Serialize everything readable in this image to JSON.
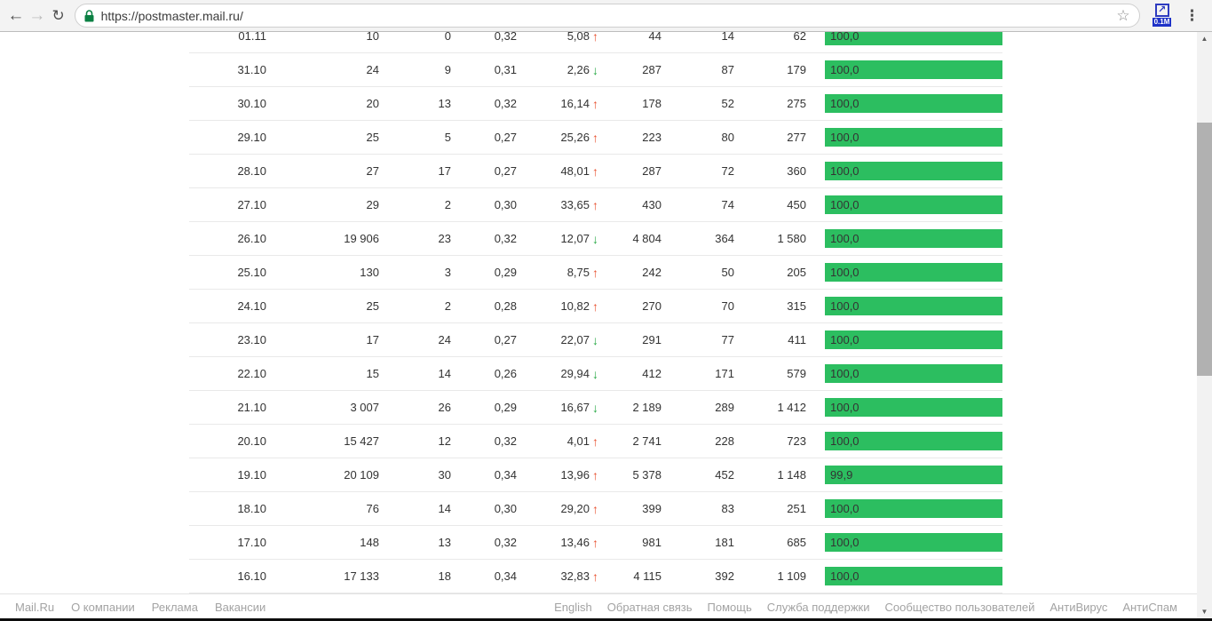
{
  "browser": {
    "url": "https://postmaster.mail.ru/",
    "extension_badge": "0.1M"
  },
  "icons": {
    "back": "←",
    "forward": "→",
    "reload": "↻",
    "star": "☆",
    "menu": "⋮",
    "ext_arrow": "↗",
    "arrow_up": "↑",
    "arrow_down": "↓",
    "scroll_up": "▲",
    "scroll_down": "▼"
  },
  "colors": {
    "bar": "#2cbe60",
    "trend_up": "#e8512f",
    "trend_down": "#27a844"
  },
  "table": {
    "rows": [
      {
        "date": "01.11",
        "c1": "10",
        "c2": "0",
        "c3": "0,32",
        "delta": "5,08",
        "trend": "up",
        "c5": "44",
        "c6": "14",
        "c7": "62",
        "bar_label": "100,0",
        "bar_pct": 100
      },
      {
        "date": "31.10",
        "c1": "24",
        "c2": "9",
        "c3": "0,31",
        "delta": "2,26",
        "trend": "down",
        "c5": "287",
        "c6": "87",
        "c7": "179",
        "bar_label": "100,0",
        "bar_pct": 100
      },
      {
        "date": "30.10",
        "c1": "20",
        "c2": "13",
        "c3": "0,32",
        "delta": "16,14",
        "trend": "up",
        "c5": "178",
        "c6": "52",
        "c7": "275",
        "bar_label": "100,0",
        "bar_pct": 100
      },
      {
        "date": "29.10",
        "c1": "25",
        "c2": "5",
        "c3": "0,27",
        "delta": "25,26",
        "trend": "up",
        "c5": "223",
        "c6": "80",
        "c7": "277",
        "bar_label": "100,0",
        "bar_pct": 100
      },
      {
        "date": "28.10",
        "c1": "27",
        "c2": "17",
        "c3": "0,27",
        "delta": "48,01",
        "trend": "up",
        "c5": "287",
        "c6": "72",
        "c7": "360",
        "bar_label": "100,0",
        "bar_pct": 100
      },
      {
        "date": "27.10",
        "c1": "29",
        "c2": "2",
        "c3": "0,30",
        "delta": "33,65",
        "trend": "up",
        "c5": "430",
        "c6": "74",
        "c7": "450",
        "bar_label": "100,0",
        "bar_pct": 100
      },
      {
        "date": "26.10",
        "c1": "19 906",
        "c2": "23",
        "c3": "0,32",
        "delta": "12,07",
        "trend": "down",
        "c5": "4 804",
        "c6": "364",
        "c7": "1 580",
        "bar_label": "100,0",
        "bar_pct": 100
      },
      {
        "date": "25.10",
        "c1": "130",
        "c2": "3",
        "c3": "0,29",
        "delta": "8,75",
        "trend": "up",
        "c5": "242",
        "c6": "50",
        "c7": "205",
        "bar_label": "100,0",
        "bar_pct": 100
      },
      {
        "date": "24.10",
        "c1": "25",
        "c2": "2",
        "c3": "0,28",
        "delta": "10,82",
        "trend": "up",
        "c5": "270",
        "c6": "70",
        "c7": "315",
        "bar_label": "100,0",
        "bar_pct": 100
      },
      {
        "date": "23.10",
        "c1": "17",
        "c2": "24",
        "c3": "0,27",
        "delta": "22,07",
        "trend": "down",
        "c5": "291",
        "c6": "77",
        "c7": "411",
        "bar_label": "100,0",
        "bar_pct": 100
      },
      {
        "date": "22.10",
        "c1": "15",
        "c2": "14",
        "c3": "0,26",
        "delta": "29,94",
        "trend": "down",
        "c5": "412",
        "c6": "171",
        "c7": "579",
        "bar_label": "100,0",
        "bar_pct": 100
      },
      {
        "date": "21.10",
        "c1": "3 007",
        "c2": "26",
        "c3": "0,29",
        "delta": "16,67",
        "trend": "down",
        "c5": "2 189",
        "c6": "289",
        "c7": "1 412",
        "bar_label": "100,0",
        "bar_pct": 100
      },
      {
        "date": "20.10",
        "c1": "15 427",
        "c2": "12",
        "c3": "0,32",
        "delta": "4,01",
        "trend": "up",
        "c5": "2 741",
        "c6": "228",
        "c7": "723",
        "bar_label": "100,0",
        "bar_pct": 100
      },
      {
        "date": "19.10",
        "c1": "20 109",
        "c2": "30",
        "c3": "0,34",
        "delta": "13,96",
        "trend": "up",
        "c5": "5 378",
        "c6": "452",
        "c7": "1 148",
        "bar_label": "99,9",
        "bar_pct": 99.9
      },
      {
        "date": "18.10",
        "c1": "76",
        "c2": "14",
        "c3": "0,30",
        "delta": "29,20",
        "trend": "up",
        "c5": "399",
        "c6": "83",
        "c7": "251",
        "bar_label": "100,0",
        "bar_pct": 100
      },
      {
        "date": "17.10",
        "c1": "148",
        "c2": "13",
        "c3": "0,32",
        "delta": "13,46",
        "trend": "up",
        "c5": "981",
        "c6": "181",
        "c7": "685",
        "bar_label": "100,0",
        "bar_pct": 100
      },
      {
        "date": "16.10",
        "c1": "17 133",
        "c2": "18",
        "c3": "0,34",
        "delta": "32,83",
        "trend": "up",
        "c5": "4 115",
        "c6": "392",
        "c7": "1 109",
        "bar_label": "100,0",
        "bar_pct": 100
      }
    ]
  },
  "footer": {
    "left_links": [
      "Mail.Ru",
      "О компании",
      "Реклама",
      "Вакансии"
    ],
    "right_links": [
      "English",
      "Обратная связь",
      "Помощь",
      "Служба поддержки",
      "Сообщество пользователей",
      "АнтиВирус",
      "АнтиСпам"
    ]
  }
}
